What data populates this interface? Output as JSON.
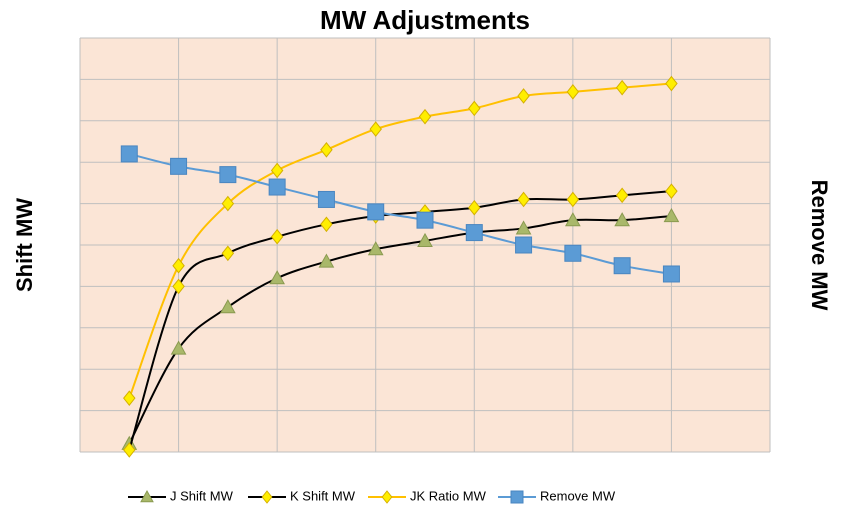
{
  "chart_data": {
    "type": "line",
    "title": "MW Adjustments",
    "y_label": "Shift MW",
    "y2_label": "Remove MW",
    "x": [
      1,
      2,
      3,
      4,
      5,
      6,
      7,
      8,
      9,
      10,
      11,
      12
    ],
    "xlim": [
      0,
      14
    ],
    "xticks": [
      0,
      2,
      4,
      6,
      8,
      10,
      12,
      14
    ],
    "ylim": [
      0,
      10
    ],
    "yticks": [
      0,
      1,
      2,
      3,
      4,
      5,
      6,
      7,
      8,
      9,
      10
    ],
    "y2lim": [
      0,
      10
    ],
    "grid": true,
    "legend": "bottom",
    "smooth": true,
    "series": [
      {
        "name": "J Shift MW",
        "color": "#000000",
        "marker": "triangle",
        "marker_color": "#a9b86a",
        "values": [
          0.2,
          2.5,
          3.5,
          4.2,
          4.6,
          4.9,
          5.1,
          5.3,
          5.4,
          5.6,
          5.6,
          5.7
        ]
      },
      {
        "name": "K Shift MW",
        "color": "#000000",
        "marker": "diamond",
        "marker_color": "#ffee00",
        "values": [
          0.05,
          4.0,
          4.8,
          5.2,
          5.5,
          5.7,
          5.8,
          5.9,
          6.1,
          6.1,
          6.2,
          6.3
        ]
      },
      {
        "name": "JK Ratio MW",
        "color": "#ffc000",
        "marker": "diamond",
        "marker_color": "#ffee00",
        "values": [
          1.3,
          4.5,
          6.0,
          6.8,
          7.3,
          7.8,
          8.1,
          8.3,
          8.6,
          8.7,
          8.8,
          8.9
        ]
      },
      {
        "name": "Remove MW",
        "color": "#5b9bd5",
        "marker": "square",
        "marker_color": "#5b9bd5",
        "axis": "y2",
        "values": [
          7.2,
          6.9,
          6.7,
          6.4,
          6.1,
          5.8,
          5.6,
          5.3,
          5.0,
          4.8,
          4.5,
          4.3
        ]
      }
    ]
  }
}
